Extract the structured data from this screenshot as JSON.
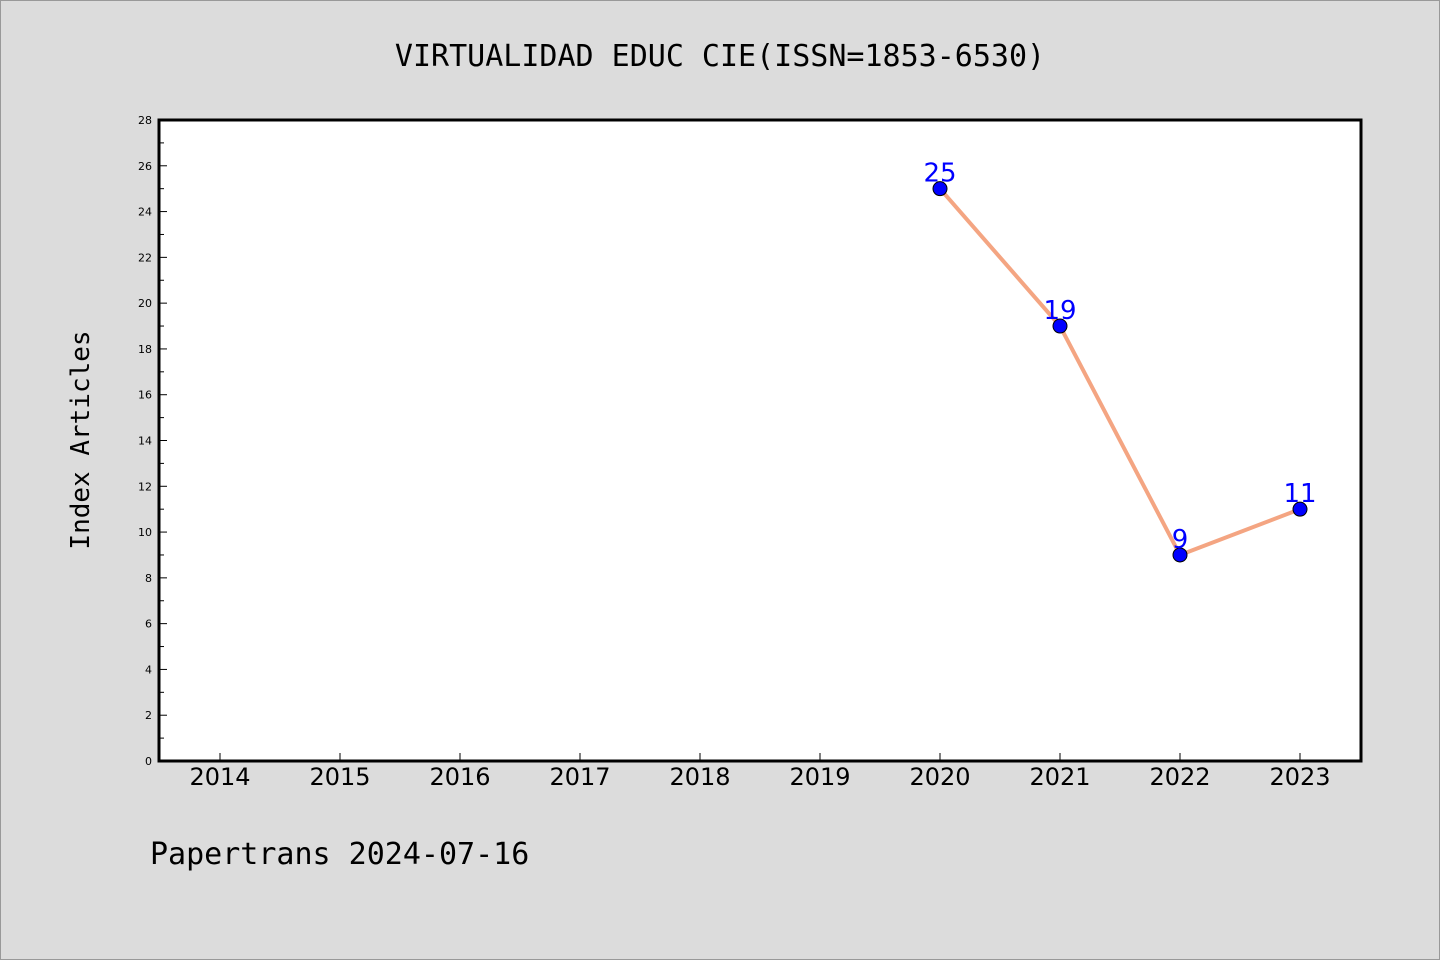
{
  "footer": "Papertrans 2024-07-16",
  "chart_data": {
    "type": "line",
    "title": "VIRTUALIDAD EDUC CIE(ISSN=1853-6530)",
    "xlabel": "",
    "ylabel": "Index Articles",
    "categories": [
      "2014",
      "2015",
      "2016",
      "2017",
      "2018",
      "2019",
      "2020",
      "2021",
      "2022",
      "2023"
    ],
    "series": [
      {
        "x": [
          "2020",
          "2021",
          "2022",
          "2023"
        ],
        "values": [
          25,
          19,
          9,
          11
        ],
        "line_color": "#f4a582",
        "marker_color": "#0000ff"
      }
    ],
    "ylim": [
      0,
      28
    ],
    "yticks": [
      0,
      2,
      4,
      6,
      8,
      10,
      12,
      14,
      16,
      18,
      20,
      22,
      24,
      26,
      28
    ],
    "data_labels": true,
    "grid": false,
    "legend": "none"
  }
}
